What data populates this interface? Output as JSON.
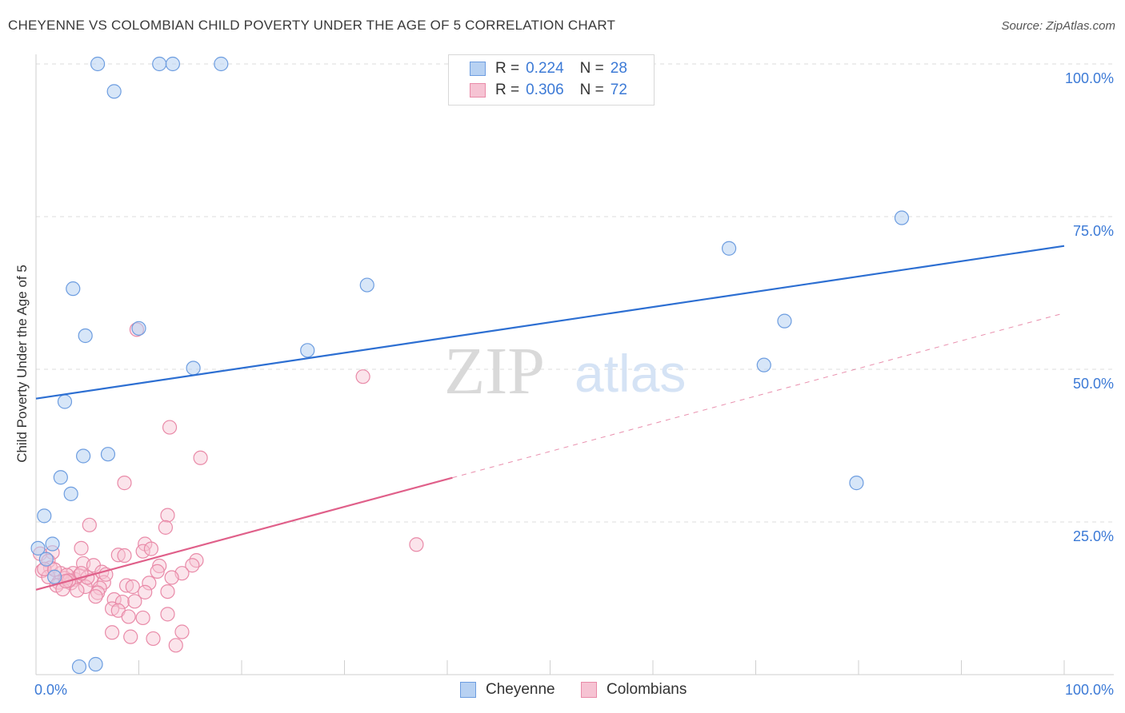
{
  "header": {
    "title": "CHEYENNE VS COLOMBIAN CHILD POVERTY UNDER THE AGE OF 5 CORRELATION CHART",
    "source": "Source: ZipAtlas.com"
  },
  "legend": {
    "cheyenne": {
      "r_label": "R =",
      "r_value": "0.224",
      "n_label": "N =",
      "n_value": "28"
    },
    "colombians": {
      "r_label": "R =",
      "r_value": "0.306",
      "n_label": "N =",
      "n_value": "72"
    }
  },
  "bottom_legend": {
    "cheyenne": "Cheyenne",
    "colombians": "Colombians"
  },
  "colors": {
    "cheyenne_fill": "#b7d1f2",
    "cheyenne_stroke": "#6d9de0",
    "cheyenne_line": "#2d6fd2",
    "colombians_fill": "#f6c3d3",
    "colombians_stroke": "#e98aa8",
    "colombians_line": "#e0608a",
    "axis_label": "#3c7ad6",
    "grid": "#dddddd"
  },
  "chart_data": {
    "type": "scatter",
    "title": "CHEYENNE VS COLOMBIAN CHILD POVERTY UNDER THE AGE OF 5 CORRELATION CHART",
    "xlabel": "",
    "ylabel": "Child Poverty Under the Age of 5",
    "xlim": [
      0,
      100
    ],
    "ylim": [
      0,
      100
    ],
    "x_tick_labels": [
      "0.0%",
      "100.0%"
    ],
    "y_ticks": [
      25,
      50,
      75,
      100
    ],
    "y_tick_labels": [
      "25.0%",
      "50.0%",
      "75.0%",
      "100.0%"
    ],
    "watermark": {
      "left": "ZIP",
      "right": "atlas"
    },
    "series": [
      {
        "name": "Cheyenne",
        "trend": {
          "x0": 0,
          "y0": 45.2,
          "x1": 100,
          "y1": 70.2,
          "dashed_from": null
        },
        "points": [
          [
            6,
            100
          ],
          [
            12,
            100
          ],
          [
            13.3,
            100
          ],
          [
            18,
            100
          ],
          [
            7.6,
            95.5
          ],
          [
            3.6,
            63.2
          ],
          [
            4.8,
            55.5
          ],
          [
            10,
            56.7
          ],
          [
            15.3,
            50.2
          ],
          [
            26.4,
            53.1
          ],
          [
            32.2,
            63.8
          ],
          [
            84.2,
            74.8
          ],
          [
            67.4,
            69.8
          ],
          [
            72.8,
            57.9
          ],
          [
            70.8,
            50.7
          ],
          [
            79.8,
            31.4
          ],
          [
            2.8,
            44.7
          ],
          [
            4.6,
            35.8
          ],
          [
            7,
            36.1
          ],
          [
            2.4,
            32.3
          ],
          [
            3.4,
            29.6
          ],
          [
            0.8,
            26
          ],
          [
            1.6,
            21.4
          ],
          [
            0.2,
            20.7
          ],
          [
            1,
            18.9
          ],
          [
            1.8,
            16
          ],
          [
            4.2,
            1.3
          ],
          [
            5.8,
            1.7
          ]
        ]
      },
      {
        "name": "Colombians",
        "trend": {
          "x0": 0,
          "y0": 13.9,
          "x1": 100,
          "y1": 59.2,
          "solid_until": 40.5
        },
        "points": [
          [
            9.8,
            56.5
          ],
          [
            31.8,
            48.8
          ],
          [
            13,
            40.5
          ],
          [
            16,
            35.5
          ],
          [
            8.6,
            31.4
          ],
          [
            12.8,
            26.1
          ],
          [
            12.6,
            24.1
          ],
          [
            5.2,
            24.5
          ],
          [
            37,
            21.3
          ],
          [
            10.6,
            21.4
          ],
          [
            10.4,
            20.2
          ],
          [
            4.4,
            20.7
          ],
          [
            1.6,
            20
          ],
          [
            0.4,
            19.8
          ],
          [
            1.2,
            18.6
          ],
          [
            11.2,
            20.6
          ],
          [
            8,
            19.6
          ],
          [
            8.6,
            19.5
          ],
          [
            15.6,
            18.7
          ],
          [
            4.6,
            18.2
          ],
          [
            5.6,
            17.9
          ],
          [
            12,
            17.8
          ],
          [
            15.2,
            17.9
          ],
          [
            1.4,
            17.5
          ],
          [
            0.6,
            17
          ],
          [
            2.4,
            16.6
          ],
          [
            3.6,
            16.6
          ],
          [
            6.4,
            16.8
          ],
          [
            11.8,
            16.9
          ],
          [
            14.2,
            16.6
          ],
          [
            1.2,
            16
          ],
          [
            2.8,
            15.8
          ],
          [
            3.8,
            15.6
          ],
          [
            4.2,
            16.2
          ],
          [
            5.4,
            15.5
          ],
          [
            6.6,
            15.1
          ],
          [
            2.2,
            15.1
          ],
          [
            3.4,
            15
          ],
          [
            2,
            14.6
          ],
          [
            4.8,
            14.4
          ],
          [
            8.8,
            14.6
          ],
          [
            6.2,
            14.2
          ],
          [
            2.6,
            14
          ],
          [
            9.4,
            14.4
          ],
          [
            12.8,
            13.6
          ],
          [
            6,
            13.4
          ],
          [
            4,
            13.8
          ],
          [
            5.8,
            12.8
          ],
          [
            7.6,
            12.3
          ],
          [
            11,
            15
          ],
          [
            8.4,
            11.9
          ],
          [
            7.4,
            10.8
          ],
          [
            8,
            10.5
          ],
          [
            10.4,
            9.3
          ],
          [
            12.8,
            9.9
          ],
          [
            9,
            9.5
          ],
          [
            14.2,
            7
          ],
          [
            7.4,
            6.9
          ],
          [
            9.2,
            6.2
          ],
          [
            11.4,
            5.9
          ],
          [
            13.6,
            4.8
          ],
          [
            0.8,
            17.3
          ],
          [
            1.8,
            17.2
          ],
          [
            3,
            16.3
          ],
          [
            3.2,
            15.4
          ],
          [
            5,
            15.9
          ],
          [
            6.8,
            16.4
          ],
          [
            9.6,
            12
          ],
          [
            10.6,
            13.5
          ],
          [
            13.2,
            15.9
          ],
          [
            2.9,
            15.3
          ],
          [
            4.4,
            16.6
          ]
        ]
      }
    ]
  }
}
